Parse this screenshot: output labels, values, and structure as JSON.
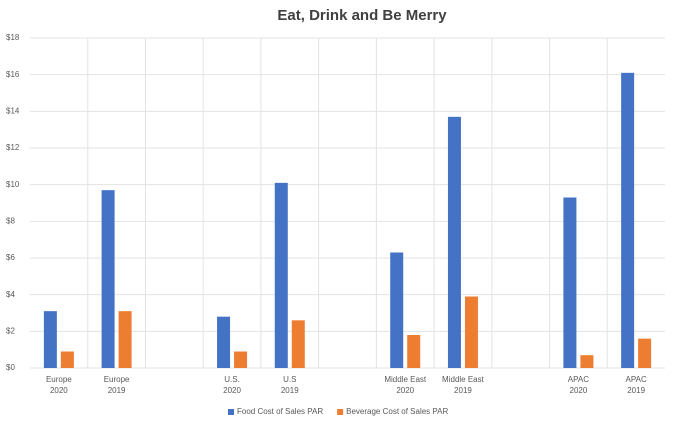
{
  "chart_data": {
    "type": "bar",
    "title": "Eat, Drink and Be Merry",
    "categories": [
      "Europe 2020",
      "Europe 2019",
      null,
      "U.S. 2020",
      "U.S 2019",
      null,
      "Middle East 2020",
      "Middle East 2019",
      null,
      "APAC 2020",
      "APAC 2019"
    ],
    "series": [
      {
        "name": "Food Cost of Sales PAR",
        "color": "#4472c4",
        "values": [
          3.1,
          9.7,
          null,
          2.8,
          10.1,
          null,
          6.3,
          13.7,
          null,
          9.3,
          16.1
        ]
      },
      {
        "name": "Beverage Cost of Sales PAR",
        "color": "#ed7d31",
        "values": [
          0.9,
          3.1,
          null,
          0.9,
          2.6,
          null,
          1.8,
          3.9,
          null,
          0.7,
          1.6
        ]
      }
    ],
    "ylim": [
      0,
      18
    ],
    "yticks": [
      {
        "value": 0,
        "label": "$0"
      },
      {
        "value": 2,
        "label": "$2"
      },
      {
        "value": 4,
        "label": "$4"
      },
      {
        "value": 6,
        "label": "$6"
      },
      {
        "value": 8,
        "label": "$8"
      },
      {
        "value": 10,
        "label": "$10"
      },
      {
        "value": 12,
        "label": "$12"
      },
      {
        "value": 14,
        "label": "$14"
      },
      {
        "value": 16,
        "label": "$16"
      },
      {
        "value": 18,
        "label": "$18"
      }
    ],
    "grid": true,
    "legend": "bottom"
  }
}
